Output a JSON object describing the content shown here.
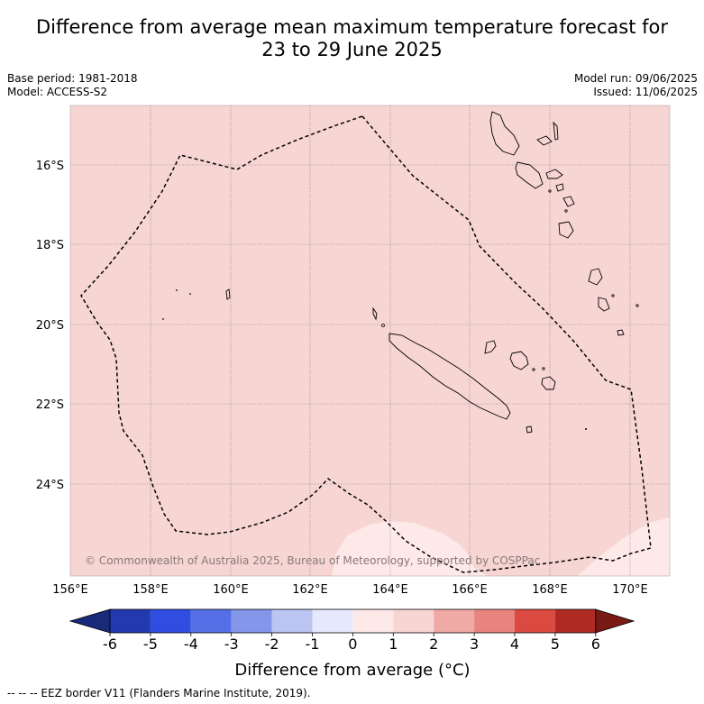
{
  "title_line1": "Difference from average mean maximum temperature forecast for",
  "title_line2": "23 to 29 June 2025",
  "base_period": "Base period: 1981-2018",
  "model": "Model: ACCESS-S2",
  "model_run": "Model run: 09/06/2025",
  "issued": "Issued: 11/06/2025",
  "copyright": "© Commonwealth of Australia 2025, Bureau of Meteorology, supported by COSPPac",
  "lat_labels": [
    "16°S",
    "18°S",
    "20°S",
    "22°S",
    "24°S"
  ],
  "lon_labels": [
    "156°E",
    "158°E",
    "160°E",
    "162°E",
    "164°E",
    "166°E",
    "168°E",
    "170°E"
  ],
  "colorbar_ticks": [
    "-6",
    "-5",
    "-4",
    "-3",
    "-2",
    "-1",
    "0",
    "1",
    "2",
    "3",
    "4",
    "5",
    "6"
  ],
  "colorbar_colors": [
    "#1a2a7a",
    "#2339b0",
    "#2f4de0",
    "#5570e6",
    "#8595ea",
    "#bcc4f2",
    "#e6e9fb",
    "#fde9e8",
    "#f6d5d3",
    "#efaaa6",
    "#e8847e",
    "#db4a40",
    "#b02a24",
    "#7a1a16"
  ],
  "colorbar_label": "Difference from average (°C)",
  "footer": "--  --  -- EEZ border V11 (Flanders Marine Institute, 2019).",
  "map_colors": {
    "main_fill": "#f6d5d3",
    "light_fill": "#fde9e8"
  }
}
